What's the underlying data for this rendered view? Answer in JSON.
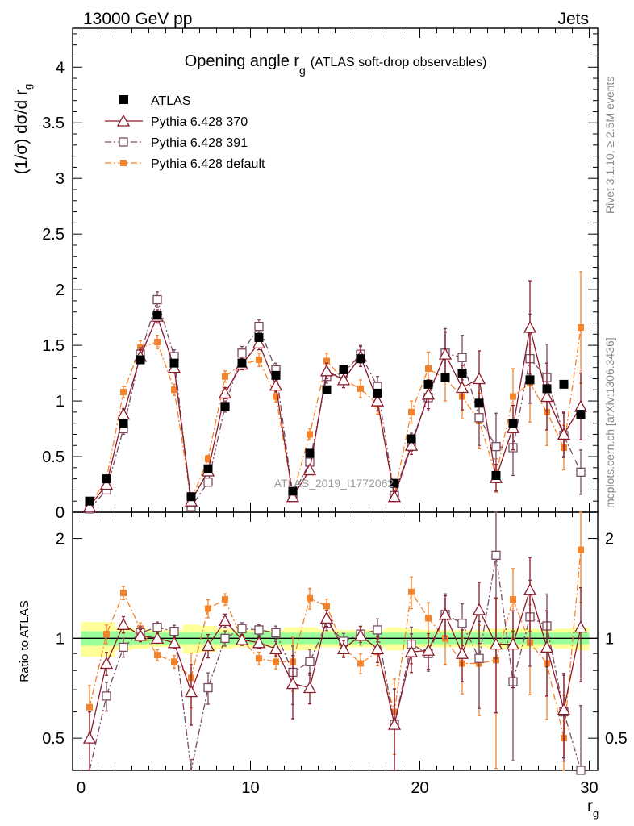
{
  "header": {
    "left": "13000 GeV pp",
    "right": "Jets"
  },
  "side_labels": {
    "rivet": "Rivet 3.1.10, ≥ 2.5M events",
    "mcplots": "mcplots.cern.ch [arXiv:1306.3436]"
  },
  "watermark": "ATLAS_2019_I1772062",
  "main_title": {
    "text": "Opening angle r",
    "sub": "g",
    "suffix": "(ATLAS soft-drop observables)"
  },
  "axes": {
    "ylabel_main": "(1/σ) dσ/d r",
    "ylabel_main_sub": "g",
    "ylabel_ratio": "Ratio to ATLAS",
    "xlabel": "r",
    "xlabel_sub": "g",
    "main_yticks": [
      "0",
      "0.5",
      "1",
      "1.5",
      "2",
      "2.5",
      "3",
      "3.5",
      "4"
    ],
    "ratio_yticks": [
      "0.5",
      "1",
      "2"
    ],
    "xticks": [
      "0",
      "10",
      "20",
      "30"
    ]
  },
  "colors": {
    "atlas": "#000000",
    "p370": "#8b1a2b",
    "p391": "#7a4a63",
    "pdef": "#f5832a",
    "band_yellow": "#ffff99",
    "band_green": "#99ff99"
  },
  "chart_data": {
    "type": "scatter",
    "x": [
      0.5,
      1.5,
      2.5,
      3.5,
      4.5,
      5.5,
      6.5,
      7.5,
      8.5,
      9.5,
      10.5,
      11.5,
      12.5,
      13.5,
      14.5,
      15.5,
      16.5,
      17.5,
      18.5,
      19.5,
      20.5,
      21.5,
      22.5,
      23.5,
      24.5,
      25.5,
      26.5,
      27.5,
      28.5,
      29.5
    ],
    "xlim": [
      -0.5,
      30.5
    ],
    "ylim_main": [
      0,
      4.35
    ],
    "ratio_ylim": [
      0.4,
      2.4
    ],
    "ratio_scale": "log",
    "series": [
      {
        "name": "ATLAS",
        "values": [
          0.1,
          0.3,
          0.8,
          1.37,
          1.77,
          1.34,
          0.14,
          0.39,
          0.95,
          1.34,
          1.57,
          1.23,
          0.19,
          0.53,
          1.1,
          1.28,
          1.38,
          1.07,
          0.26,
          0.66,
          1.15,
          1.21,
          1.25,
          0.98,
          0.33,
          0.8,
          1.19,
          1.11,
          1.15,
          0.88
        ]
      },
      {
        "name": "Pythia 6.428 370",
        "values": [
          0.05,
          0.25,
          0.88,
          1.4,
          1.76,
          1.3,
          0.1,
          0.37,
          1.07,
          1.33,
          1.52,
          1.14,
          0.14,
          0.38,
          1.27,
          1.19,
          1.4,
          1.0,
          0.14,
          0.6,
          1.06,
          1.42,
          1.12,
          1.2,
          0.31,
          0.76,
          1.66,
          1.04,
          0.7,
          0.95
        ],
        "errors": [
          0.01,
          0.02,
          0.05,
          0.06,
          0.06,
          0.05,
          0.02,
          0.03,
          0.05,
          0.05,
          0.06,
          0.06,
          0.03,
          0.04,
          0.07,
          0.07,
          0.09,
          0.09,
          0.04,
          0.08,
          0.13,
          0.2,
          0.2,
          0.25,
          0.12,
          0.2,
          0.42,
          0.3,
          0.2,
          0.3
        ],
        "ratio": [
          0.5,
          0.84,
          1.1,
          1.02,
          1.0,
          0.97,
          0.69,
          0.95,
          1.13,
          0.99,
          0.97,
          0.93,
          0.73,
          0.71,
          1.15,
          0.93,
          1.02,
          0.93,
          0.55,
          0.91,
          0.92,
          1.18,
          0.9,
          1.22,
          0.96,
          0.96,
          1.4,
          0.94,
          0.61,
          1.08
        ]
      },
      {
        "name": "Pythia 6.428 391",
        "values": [
          0.03,
          0.2,
          0.75,
          1.42,
          1.91,
          1.4,
          0.05,
          0.27,
          0.95,
          1.43,
          1.67,
          1.28,
          0.15,
          0.45,
          1.22,
          1.25,
          1.42,
          1.13,
          0.15,
          0.63,
          1.03,
          1.43,
          1.39,
          0.85,
          0.59,
          0.58,
          1.38,
          1.21,
          0.69,
          0.36
        ],
        "errors": [
          0.01,
          0.02,
          0.05,
          0.06,
          0.07,
          0.06,
          0.01,
          0.03,
          0.05,
          0.06,
          0.06,
          0.06,
          0.03,
          0.04,
          0.06,
          0.07,
          0.08,
          0.09,
          0.04,
          0.08,
          0.12,
          0.22,
          0.2,
          0.25,
          0.3,
          0.25,
          0.4,
          0.3,
          0.2,
          0.2
        ],
        "ratio": [
          0.3,
          0.67,
          0.94,
          1.04,
          1.08,
          1.05,
          0.36,
          0.71,
          1.0,
          1.07,
          1.06,
          1.04,
          0.79,
          0.85,
          1.11,
          0.98,
          1.03,
          1.06,
          0.55,
          0.96,
          0.9,
          1.18,
          1.11,
          0.87,
          1.78,
          0.74,
          1.16,
          1.09,
          0.6,
          0.4
        ]
      },
      {
        "name": "Pythia 6.428 default",
        "values": [
          0.06,
          0.3,
          1.08,
          1.48,
          1.53,
          1.1,
          0.11,
          0.48,
          1.22,
          1.33,
          1.37,
          1.04,
          0.16,
          0.7,
          1.36,
          1.19,
          1.11,
          0.97,
          0.16,
          0.9,
          1.29,
          1.2,
          1.04,
          0.82,
          0.33,
          1.04,
          1.16,
          0.9,
          0.58,
          1.66
        ],
        "errors": [
          0.01,
          0.02,
          0.05,
          0.06,
          0.06,
          0.05,
          0.02,
          0.03,
          0.05,
          0.05,
          0.06,
          0.05,
          0.03,
          0.05,
          0.07,
          0.07,
          0.08,
          0.09,
          0.04,
          0.1,
          0.15,
          0.2,
          0.2,
          0.25,
          0.15,
          0.25,
          0.35,
          0.3,
          0.2,
          0.5
        ],
        "ratio": [
          0.62,
          1.03,
          1.37,
          1.07,
          0.89,
          0.85,
          0.76,
          1.23,
          1.31,
          0.99,
          0.87,
          0.85,
          0.85,
          1.32,
          1.25,
          0.94,
          0.84,
          0.91,
          0.6,
          1.38,
          1.15,
          1.0,
          0.84,
          0.84,
          0.86,
          1.31,
          0.97,
          0.84,
          0.5,
          1.85
        ]
      }
    ],
    "band_inner": [
      0.05,
      0.05,
      0.05,
      0.04,
      0.04,
      0.04,
      0.04,
      0.04,
      0.04,
      0.04,
      0.04,
      0.04,
      0.04,
      0.04,
      0.04,
      0.04,
      0.04,
      0.04,
      0.04,
      0.04,
      0.04,
      0.04,
      0.04,
      0.04,
      0.04,
      0.04,
      0.04,
      0.04,
      0.04,
      0.04
    ],
    "band_outer": [
      0.12,
      0.12,
      0.08,
      0.07,
      0.06,
      0.06,
      0.1,
      0.09,
      0.07,
      0.06,
      0.06,
      0.06,
      0.08,
      0.08,
      0.06,
      0.06,
      0.06,
      0.06,
      0.08,
      0.07,
      0.06,
      0.06,
      0.06,
      0.06,
      0.07,
      0.07,
      0.07,
      0.06,
      0.07,
      0.08
    ]
  },
  "legend": [
    "ATLAS",
    "Pythia 6.428 370",
    "Pythia 6.428 391",
    "Pythia 6.428 default"
  ]
}
